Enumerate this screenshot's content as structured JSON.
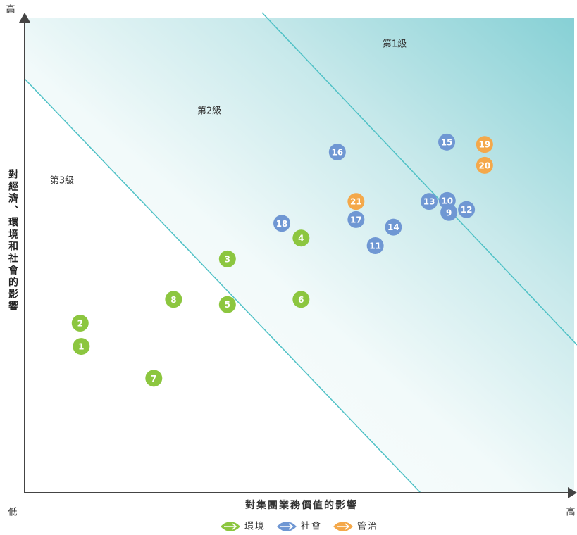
{
  "chart_data": {
    "type": "scatter",
    "xlabel": "對集團業務價值的影響",
    "ylabel": "對經濟、環境和社會的影響",
    "axis_end_labels": {
      "y_max": "高",
      "origin": "低",
      "x_max": "高"
    },
    "zones": [
      "第1級",
      "第2級",
      "第3級"
    ],
    "xlim": [
      0,
      100
    ],
    "ylim": [
      0,
      100
    ],
    "series": [
      {
        "name": "環境",
        "color": "#8cc63f",
        "point_labels": [
          1,
          2,
          3,
          4,
          5,
          6,
          7,
          8
        ],
        "x": [
          10.3,
          10.1,
          36.9,
          50.3,
          36.9,
          50.3,
          23.5,
          27.1
        ],
        "y": [
          30.8,
          35.7,
          49.2,
          53.6,
          39.6,
          40.7,
          24.1,
          40.7
        ]
      },
      {
        "name": "社會",
        "color": "#6f97d3",
        "point_labels": [
          9,
          10,
          11,
          12,
          13,
          14,
          15,
          16,
          17,
          18
        ],
        "x": [
          77.2,
          76.9,
          63.8,
          80.4,
          73.6,
          67.1,
          76.8,
          56.9,
          60.3,
          46.8
        ],
        "y": [
          59.0,
          61.5,
          52.0,
          59.6,
          61.3,
          55.9,
          73.8,
          71.7,
          57.5,
          56.7
        ]
      },
      {
        "name": "管治",
        "color": "#f4a84a",
        "point_labels": [
          19,
          20,
          21
        ],
        "x": [
          83.7,
          83.7,
          60.3
        ],
        "y": [
          73.3,
          68.9,
          61.3
        ]
      }
    ]
  }
}
